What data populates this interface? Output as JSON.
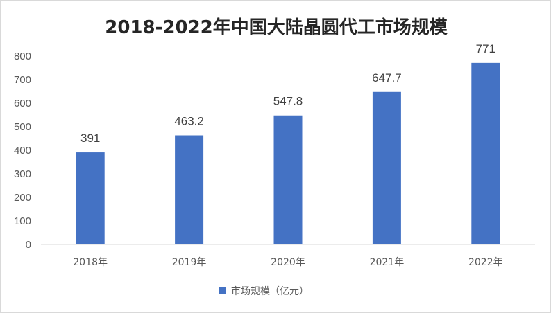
{
  "chart_data": {
    "type": "bar",
    "title": "2018-2022年中国大陆晶圆代工市场规模",
    "categories": [
      "2018年",
      "2019年",
      "2020年",
      "2021年",
      "2022年"
    ],
    "series": [
      {
        "name": "市场规模（亿元）",
        "values": [
          391,
          463.2,
          547.8,
          647.7,
          771
        ],
        "color": "#4472c4"
      }
    ],
    "data_labels": [
      "391",
      "463.2",
      "547.8",
      "647.7",
      "771"
    ],
    "y_ticks": [
      0,
      100,
      200,
      300,
      400,
      500,
      600,
      700,
      800
    ],
    "ylim": [
      0,
      800
    ],
    "xlabel": "",
    "ylabel": "",
    "grid": false,
    "legend_position": "bottom"
  }
}
